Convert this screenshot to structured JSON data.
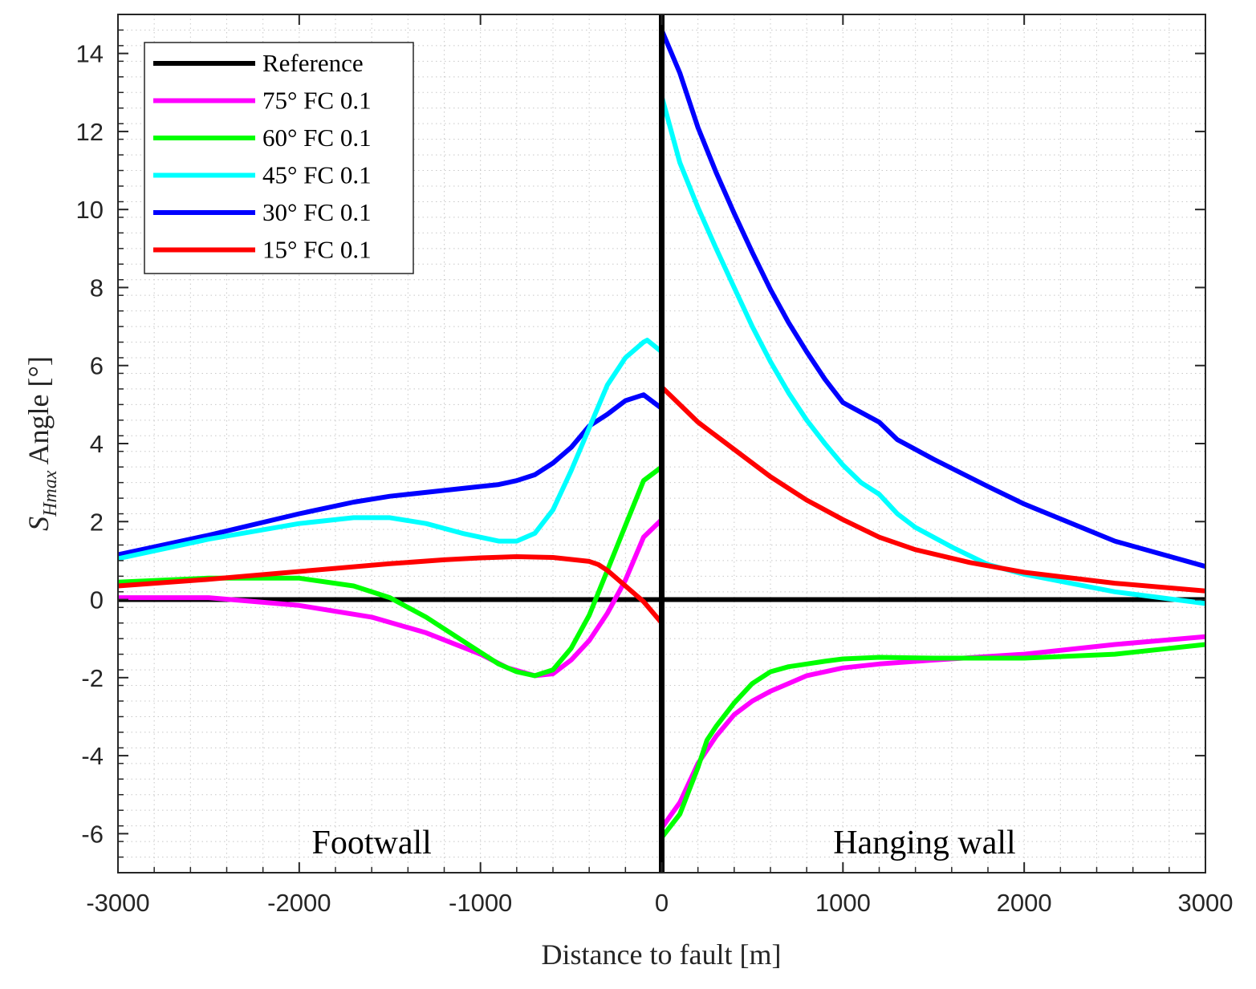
{
  "chart_data": {
    "type": "line",
    "title": "",
    "xlabel": "Distance to fault [m]",
    "ylabel_main": "S",
    "ylabel_sub": "Hmax",
    "ylabel_rest": " Angle [°]",
    "xlim": [
      -3000,
      3000
    ],
    "ylim": [
      -7,
      15
    ],
    "xticks": [
      -3000,
      -2000,
      -1000,
      0,
      1000,
      2000,
      3000
    ],
    "yticks": [
      -6,
      -4,
      -2,
      0,
      2,
      4,
      6,
      8,
      10,
      12,
      14
    ],
    "grid": "minor-dotted",
    "legend_position": "top-left",
    "annotations": [
      {
        "text": "Footwall",
        "x": -1600,
        "y": -6.2
      },
      {
        "text": "Hanging wall",
        "x": 1450,
        "y": -6.2
      }
    ],
    "series": [
      {
        "name": "Reference",
        "color": "#000000",
        "x": [
          -3000,
          3000
        ],
        "y": [
          0,
          0
        ]
      },
      {
        "name": "Fault",
        "color": "#000000",
        "legend": false,
        "x": [
          0,
          0
        ],
        "y": [
          -7,
          15
        ]
      },
      {
        "name": "75° FC 0.1",
        "color": "#ff00ff",
        "x": [
          -3000,
          -2500,
          -2000,
          -1600,
          -1300,
          -1000,
          -850,
          -700,
          -600,
          -500,
          -400,
          -300,
          -200,
          -100,
          0
        ],
        "y": [
          0.05,
          0.05,
          -0.15,
          -0.45,
          -0.85,
          -1.4,
          -1.75,
          -1.95,
          -1.9,
          -1.55,
          -1.05,
          -0.35,
          0.5,
          1.6,
          2.05
        ],
        "x2": [
          0,
          100,
          200,
          300,
          400,
          500,
          600,
          700,
          800,
          1000,
          1200,
          1500,
          2000,
          2500,
          3000
        ],
        "y2": [
          -5.85,
          -5.2,
          -4.2,
          -3.5,
          -2.95,
          -2.6,
          -2.35,
          -2.15,
          -1.95,
          -1.75,
          -1.65,
          -1.55,
          -1.4,
          -1.15,
          -0.95
        ]
      },
      {
        "name": "60° FC 0.1",
        "color": "#00ff00",
        "x": [
          -3000,
          -2500,
          -2000,
          -1700,
          -1500,
          -1300,
          -1100,
          -900,
          -800,
          -700,
          -600,
          -500,
          -400,
          -300,
          -200,
          -100,
          0
        ],
        "y": [
          0.45,
          0.55,
          0.55,
          0.35,
          0.05,
          -0.45,
          -1.05,
          -1.65,
          -1.85,
          -1.95,
          -1.8,
          -1.25,
          -0.4,
          0.75,
          1.9,
          3.05,
          3.4
        ],
        "x2": [
          0,
          100,
          200,
          250,
          300,
          400,
          500,
          600,
          700,
          800,
          900,
          1000,
          1200,
          1500,
          2000,
          2500,
          3000
        ],
        "y2": [
          -6.1,
          -5.5,
          -4.3,
          -3.6,
          -3.25,
          -2.65,
          -2.15,
          -1.85,
          -1.72,
          -1.65,
          -1.58,
          -1.52,
          -1.48,
          -1.5,
          -1.5,
          -1.4,
          -1.15
        ]
      },
      {
        "name": "45° FC 0.1",
        "color": "#00ffff",
        "x": [
          -3000,
          -2500,
          -2000,
          -1700,
          -1500,
          -1300,
          -1100,
          -900,
          -800,
          -700,
          -600,
          -500,
          -400,
          -300,
          -200,
          -100,
          -80,
          0
        ],
        "y": [
          1.05,
          1.55,
          1.95,
          2.1,
          2.1,
          1.95,
          1.7,
          1.5,
          1.5,
          1.7,
          2.3,
          3.3,
          4.4,
          5.5,
          6.2,
          6.6,
          6.65,
          6.35
        ],
        "x2": [
          0,
          100,
          200,
          300,
          400,
          500,
          600,
          700,
          800,
          900,
          1000,
          1100,
          1200,
          1300,
          1400,
          1600,
          1800,
          2000,
          2500,
          3000
        ],
        "y2": [
          12.9,
          11.2,
          10.05,
          9.0,
          8.0,
          7.0,
          6.1,
          5.3,
          4.6,
          4.0,
          3.45,
          3.0,
          2.7,
          2.2,
          1.85,
          1.35,
          0.9,
          0.65,
          0.2,
          -0.1
        ]
      },
      {
        "name": "30° FC 0.1",
        "color": "#0000ff",
        "x": [
          -3000,
          -2500,
          -2000,
          -1700,
          -1500,
          -1200,
          -1000,
          -900,
          -800,
          -700,
          -600,
          -500,
          -400,
          -300,
          -200,
          -100,
          0
        ],
        "y": [
          1.15,
          1.65,
          2.2,
          2.5,
          2.65,
          2.8,
          2.9,
          2.95,
          3.05,
          3.2,
          3.5,
          3.9,
          4.45,
          4.75,
          5.1,
          5.25,
          4.9
        ],
        "x2": [
          0,
          100,
          200,
          300,
          400,
          500,
          600,
          700,
          800,
          900,
          1000,
          1200,
          1300,
          1500,
          1800,
          2000,
          2500,
          3000
        ],
        "y2": [
          14.6,
          13.5,
          12.1,
          10.95,
          9.9,
          8.9,
          7.95,
          7.1,
          6.35,
          5.65,
          5.05,
          4.55,
          4.1,
          3.6,
          2.9,
          2.45,
          1.5,
          0.85
        ]
      },
      {
        "name": "15° FC 0.1",
        "color": "#ff0000",
        "x": [
          -3000,
          -2500,
          -2000,
          -1500,
          -1200,
          -1000,
          -800,
          -600,
          -400,
          -350,
          -300,
          -200,
          -100,
          0
        ],
        "y": [
          0.35,
          0.52,
          0.72,
          0.92,
          1.02,
          1.07,
          1.1,
          1.08,
          0.98,
          0.9,
          0.75,
          0.35,
          -0.05,
          -0.6
        ],
        "x2": [
          0,
          100,
          200,
          300,
          400,
          600,
          800,
          1000,
          1200,
          1400,
          1700,
          2000,
          2500,
          3000
        ],
        "y2": [
          5.45,
          5.0,
          4.55,
          4.2,
          3.85,
          3.15,
          2.55,
          2.05,
          1.6,
          1.28,
          0.95,
          0.7,
          0.42,
          0.22
        ]
      }
    ]
  }
}
